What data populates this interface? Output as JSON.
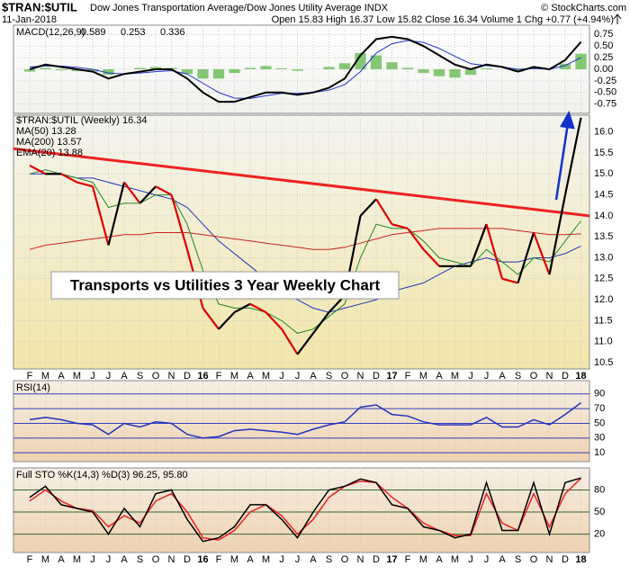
{
  "header": {
    "symbol": "$TRAN:$UTIL",
    "name": "Dow Jones Transportation Average/Dow Jones Utility Average INDX",
    "credit": "© StockCharts.com",
    "date": "11-Jan-2018",
    "quote": "Open 15.83 High 16.37 Low 15.82 Close 16.34 Volume 1 Chg +0.77 (+4.94%)"
  },
  "chart_data": [
    {
      "type": "macd",
      "title": "MACD(12,26,9)",
      "ylim": [
        -0.95,
        0.95
      ],
      "yticks": [
        {
          "value": 0.75,
          "label": "0.75"
        },
        {
          "value": 0.5,
          "label": "0.50"
        },
        0.25,
        {
          "value": 0,
          "label": "0.00"
        },
        -0.25,
        {
          "value": -0.5,
          "label": "-0.50"
        },
        -0.75
      ],
      "series": [
        {
          "name": "MACD",
          "color": "#000000",
          "values": [
            0.0,
            0.1,
            0.05,
            0.0,
            -0.05,
            -0.2,
            -0.1,
            -0.05,
            0.0,
            0.0,
            -0.2,
            -0.5,
            -0.7,
            -0.7,
            -0.6,
            -0.5,
            -0.5,
            -0.55,
            -0.5,
            -0.4,
            -0.2,
            0.3,
            0.65,
            0.7,
            0.65,
            0.5,
            0.3,
            0.1,
            0.0,
            0.1,
            0.05,
            -0.05,
            0.05,
            0.0,
            0.2,
            0.589
          ]
        },
        {
          "name": "Signal",
          "color": "#2233cc",
          "values": [
            0.05,
            0.07,
            0.07,
            0.04,
            0.0,
            -0.08,
            -0.1,
            -0.08,
            -0.05,
            -0.03,
            -0.1,
            -0.3,
            -0.5,
            -0.62,
            -0.63,
            -0.57,
            -0.52,
            -0.52,
            -0.5,
            -0.45,
            -0.33,
            -0.05,
            0.35,
            0.55,
            0.62,
            0.58,
            0.45,
            0.28,
            0.12,
            0.08,
            0.05,
            0.0,
            0.02,
            0.0,
            0.08,
            0.253
          ]
        },
        {
          "name": "Histogram",
          "color": "#66bb55",
          "values": [
            -0.05,
            0.03,
            -0.02,
            -0.04,
            -0.05,
            -0.12,
            0.0,
            0.03,
            0.05,
            0.03,
            -0.1,
            -0.2,
            -0.2,
            -0.08,
            0.03,
            0.07,
            0.02,
            -0.03,
            0.0,
            0.05,
            0.13,
            0.35,
            0.3,
            0.15,
            0.03,
            -0.08,
            -0.15,
            -0.18,
            -0.12,
            0.02,
            0.0,
            -0.05,
            0.03,
            0.0,
            0.12,
            0.336
          ]
        }
      ]
    },
    {
      "type": "price",
      "ylim": [
        10.35,
        16.4
      ],
      "grid": true,
      "categories": [
        "F",
        "M",
        "A",
        "M",
        "J",
        "J",
        "A",
        "S",
        "O",
        "N",
        "D",
        "16",
        "F",
        "M",
        "A",
        "M",
        "J",
        "J",
        "A",
        "S",
        "O",
        "N",
        "D",
        "17",
        "F",
        "M",
        "A",
        "M",
        "J",
        "J",
        "A",
        "S",
        "O",
        "N",
        "D",
        "18"
      ],
      "yticks": [
        10.5,
        {
          "value": 11,
          "label": "11.0"
        },
        11.5,
        {
          "value": 12,
          "label": "12.0"
        },
        12.5,
        {
          "value": 13,
          "label": "13.0"
        },
        13.5,
        {
          "value": 14,
          "label": "14.0"
        },
        14.5,
        {
          "value": 15,
          "label": "15.0"
        },
        15.5,
        {
          "value": 16,
          "label": "16.0"
        }
      ],
      "up_color": "#000000",
      "down_color": "#dd0000",
      "series": [
        {
          "name": "$TRAN:$UTIL (Weekly)",
          "color": "#000000",
          "values": [
            15.2,
            15.0,
            15.0,
            14.8,
            14.7,
            13.3,
            14.8,
            14.3,
            14.7,
            14.5,
            13.2,
            11.8,
            11.3,
            11.7,
            11.9,
            11.7,
            11.3,
            10.7,
            11.2,
            11.7,
            12.1,
            14.0,
            14.4,
            13.8,
            13.7,
            13.2,
            12.8,
            12.8,
            12.8,
            13.8,
            12.5,
            12.4,
            13.6,
            12.6,
            14.5,
            16.34
          ]
        },
        {
          "name": "MA(50)",
          "color": "#2233bb",
          "values": [
            15.0,
            15.0,
            15.0,
            14.9,
            14.9,
            14.8,
            14.7,
            14.6,
            14.5,
            14.4,
            14.2,
            13.8,
            13.4,
            13.1,
            12.8,
            12.5,
            12.2,
            12.0,
            11.8,
            11.7,
            11.8,
            11.9,
            12.0,
            12.2,
            12.3,
            12.4,
            12.6,
            12.8,
            12.9,
            13.0,
            12.9,
            12.9,
            13.0,
            13.0,
            13.1,
            13.28
          ]
        },
        {
          "name": "MA(200)",
          "color": "#cc2222",
          "values": [
            13.2,
            13.3,
            13.35,
            13.4,
            13.45,
            13.5,
            13.55,
            13.55,
            13.6,
            13.6,
            13.6,
            13.55,
            13.5,
            13.45,
            13.4,
            13.35,
            13.3,
            13.25,
            13.2,
            13.2,
            13.25,
            13.35,
            13.45,
            13.55,
            13.6,
            13.65,
            13.7,
            13.7,
            13.7,
            13.7,
            13.7,
            13.65,
            13.6,
            13.55,
            13.55,
            13.57
          ]
        },
        {
          "name": "EMA(20)",
          "color": "#228822",
          "values": [
            15.0,
            15.1,
            15.0,
            14.9,
            14.8,
            14.2,
            14.3,
            14.3,
            14.5,
            14.5,
            13.8,
            12.7,
            11.9,
            11.8,
            11.8,
            11.7,
            11.5,
            11.2,
            11.3,
            11.6,
            11.9,
            13.0,
            13.8,
            13.7,
            13.7,
            13.4,
            13.0,
            12.9,
            12.8,
            13.2,
            12.9,
            12.6,
            13.0,
            12.9,
            13.4,
            13.88
          ]
        }
      ],
      "trendline": {
        "color": "#ee2222",
        "values": [
          15.6,
          14.0
        ]
      },
      "annotation": "Transports vs Utilities 3 Year Weekly Chart"
    },
    {
      "type": "oscillator",
      "title": "RSI(14)",
      "ylim": [
        -2,
        108
      ],
      "yticks": [
        90,
        70,
        50,
        30,
        10
      ],
      "series": [
        {
          "name": "RSI",
          "color": "#2233bb",
          "values": [
            55,
            58,
            55,
            50,
            48,
            35,
            50,
            45,
            52,
            50,
            35,
            30,
            32,
            40,
            42,
            40,
            38,
            35,
            42,
            48,
            52,
            72,
            75,
            62,
            60,
            52,
            48,
            48,
            48,
            58,
            45,
            45,
            55,
            48,
            62,
            77.93
          ]
        }
      ]
    },
    {
      "type": "oscillator",
      "title": "Full STO %K(14,3) %D(3) 96.25, 95.80",
      "ylim": [
        -5,
        110
      ],
      "yticks": [
        80,
        50,
        20
      ],
      "categories": [
        "F",
        "M",
        "A",
        "M",
        "J",
        "J",
        "A",
        "S",
        "O",
        "N",
        "D",
        "16",
        "F",
        "M",
        "A",
        "M",
        "J",
        "J",
        "A",
        "S",
        "O",
        "N",
        "D",
        "17",
        "F",
        "M",
        "A",
        "M",
        "J",
        "J",
        "A",
        "S",
        "O",
        "N",
        "D",
        "18"
      ],
      "series": [
        {
          "name": "%K",
          "color": "#000000",
          "values": [
            70,
            85,
            60,
            55,
            50,
            20,
            55,
            30,
            75,
            80,
            40,
            10,
            15,
            30,
            60,
            60,
            40,
            15,
            50,
            80,
            85,
            95,
            90,
            60,
            55,
            30,
            25,
            15,
            20,
            90,
            25,
            25,
            90,
            20,
            90,
            96.25
          ]
        },
        {
          "name": "%D",
          "color": "#ee2222",
          "values": [
            65,
            80,
            65,
            55,
            52,
            30,
            45,
            35,
            65,
            75,
            50,
            15,
            12,
            25,
            50,
            60,
            45,
            20,
            40,
            70,
            85,
            92,
            90,
            70,
            55,
            35,
            25,
            18,
            18,
            75,
            35,
            25,
            75,
            30,
            75,
            95.8
          ]
        }
      ]
    }
  ]
}
